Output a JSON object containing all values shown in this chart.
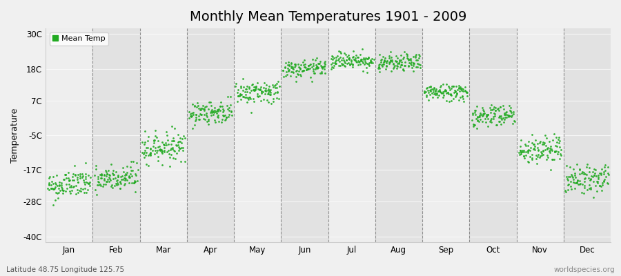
{
  "title": "Monthly Mean Temperatures 1901 - 2009",
  "ylabel": "Temperature",
  "bottom_left_text": "Latitude 48.75 Longitude 125.75",
  "bottom_right_text": "worldspecies.org",
  "legend_label": "Mean Temp",
  "dot_color": "#22aa22",
  "background_color": "#f0f0f0",
  "stripe_light": "#eeeeee",
  "stripe_dark": "#e2e2e2",
  "yticks": [
    -40,
    -28,
    -17,
    -5,
    7,
    18,
    30
  ],
  "ytick_labels": [
    "-40C",
    "-28C",
    "-17C",
    "-5C",
    "7C",
    "18C",
    "30C"
  ],
  "ylim": [
    -42,
    32
  ],
  "months": [
    "Jan",
    "Feb",
    "Mar",
    "Apr",
    "May",
    "Jun",
    "Jul",
    "Aug",
    "Sep",
    "Oct",
    "Nov",
    "Dec"
  ],
  "month_means": [
    -22,
    -20,
    -9,
    3,
    10,
    18,
    21,
    20,
    10,
    2,
    -10,
    -20
  ],
  "month_trends": [
    1.5,
    1.5,
    1.0,
    0.5,
    0.5,
    0.5,
    0.3,
    0.3,
    0.3,
    0.5,
    0.8,
    1.0
  ],
  "month_stds": [
    2.5,
    2.5,
    2.5,
    2.0,
    2.0,
    1.5,
    1.5,
    1.5,
    1.5,
    2.0,
    2.5,
    2.5
  ],
  "n_years": 109,
  "title_fontsize": 14,
  "label_fontsize": 9,
  "tick_fontsize": 8.5
}
